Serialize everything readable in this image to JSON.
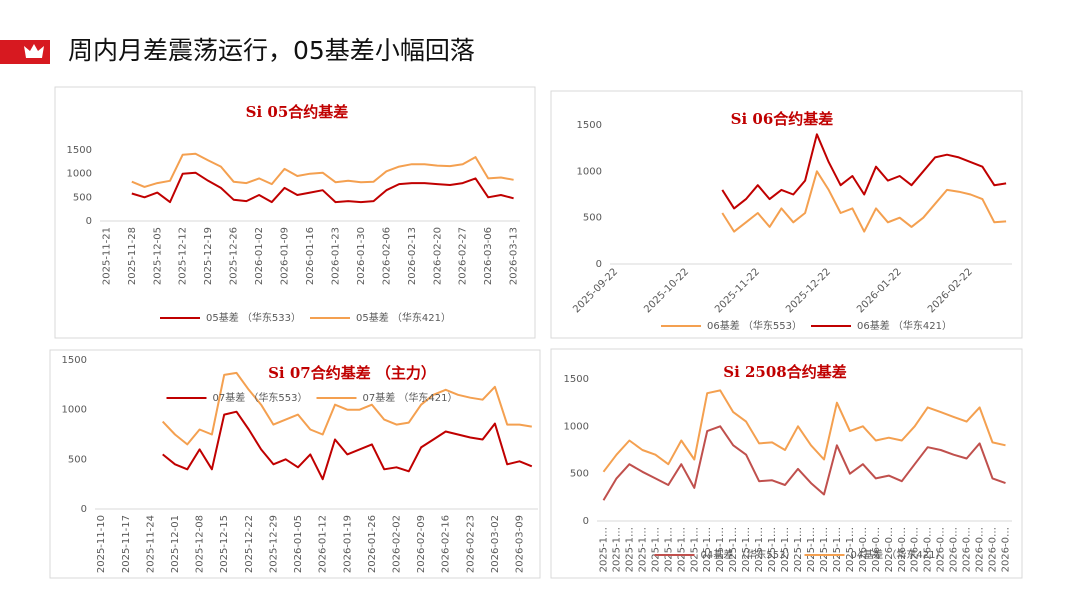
{
  "page_title": "周内月差震荡运行，05基差小幅回落",
  "chart_data": [
    {
      "type": "line",
      "title": "Si 05合约基差",
      "legend": "bottom",
      "categories": [
        "2025-11-21",
        null,
        "2025-11-28",
        null,
        "2025-12-05",
        null,
        "2025-12-12",
        null,
        "2025-12-19",
        null,
        "2025-12-26",
        null,
        "2026-01-02",
        null,
        "2026-01-09",
        null,
        "2026-01-16",
        null,
        "2026-01-23",
        null,
        "2026-01-30",
        null,
        "2026-02-06",
        null,
        "2026-02-13",
        null,
        "2026-02-20",
        null,
        "2026-02-27",
        null,
        "2026-03-06",
        null,
        "2026-03-13"
      ],
      "series": [
        {
          "name": "05基差 （华东533）",
          "color": "#c00000",
          "values": [
            null,
            null,
            580,
            500,
            600,
            400,
            1000,
            1020,
            850,
            700,
            450,
            420,
            550,
            400,
            700,
            550,
            600,
            650,
            400,
            420,
            400,
            420,
            650,
            780,
            800,
            800,
            780,
            760,
            800,
            900,
            500,
            550,
            480
          ]
        },
        {
          "name": "05基差 （华东421）",
          "color": "#f4a050",
          "values": [
            null,
            null,
            830,
            720,
            800,
            850,
            1400,
            1420,
            1280,
            1150,
            830,
            800,
            900,
            780,
            1100,
            950,
            1000,
            1020,
            820,
            850,
            820,
            830,
            1050,
            1150,
            1200,
            1200,
            1170,
            1160,
            1200,
            1350,
            900,
            920,
            870
          ]
        }
      ],
      "ylim": [
        0,
        1500
      ],
      "yticks": [
        0,
        500,
        1000,
        1500
      ]
    },
    {
      "type": "line",
      "title": "Si 06合约基差",
      "legend": "bottom",
      "categories": [
        "2025-09-22",
        null,
        null,
        null,
        null,
        null,
        "2025-10-22",
        null,
        null,
        null,
        null,
        null,
        "2025-11-22",
        null,
        null,
        null,
        null,
        null,
        "2025-12-22",
        null,
        null,
        null,
        null,
        null,
        "2026-01-22",
        null,
        null,
        null,
        null,
        null,
        "2026-02-22",
        null,
        null,
        null
      ],
      "series": [
        {
          "name": "06基差 （华东553）",
          "color": "#f4a050",
          "values": [
            null,
            null,
            null,
            null,
            null,
            null,
            null,
            null,
            null,
            550,
            350,
            450,
            550,
            400,
            600,
            450,
            550,
            1000,
            800,
            550,
            600,
            350,
            600,
            450,
            500,
            400,
            500,
            650,
            800,
            780,
            750,
            700,
            450,
            460
          ]
        },
        {
          "name": "06基差 （华东421）",
          "color": "#c00000",
          "values": [
            null,
            null,
            null,
            null,
            null,
            null,
            null,
            null,
            null,
            800,
            600,
            700,
            850,
            700,
            800,
            750,
            900,
            1400,
            1100,
            850,
            950,
            750,
            1050,
            900,
            950,
            850,
            1000,
            1150,
            1180,
            1150,
            1100,
            1050,
            850,
            870
          ]
        }
      ],
      "ylim": [
        0,
        1500
      ],
      "yticks": [
        0,
        500,
        1000,
        1500
      ]
    },
    {
      "type": "line",
      "title": "Si 07合约基差 （主力）",
      "legend": "top",
      "categories": [
        "2025-11-10",
        null,
        "2025-11-17",
        null,
        "2025-11-24",
        null,
        "2025-12-01",
        null,
        "2025-12-08",
        null,
        "2025-12-15",
        null,
        "2025-12-22",
        null,
        "2025-12-29",
        null,
        "2026-01-05",
        null,
        "2026-01-12",
        null,
        "2026-01-19",
        null,
        "2026-01-26",
        null,
        "2026-02-02",
        null,
        "2026-02-09",
        null,
        "2026-02-16",
        null,
        "2026-02-23",
        null,
        "2026-03-02",
        null,
        "2026-03-09",
        null
      ],
      "series": [
        {
          "name": "07基差 （华东553）",
          "color": "#c00000",
          "values": [
            null,
            null,
            null,
            null,
            null,
            550,
            450,
            400,
            600,
            400,
            950,
            980,
            800,
            600,
            450,
            500,
            420,
            550,
            300,
            700,
            550,
            600,
            650,
            400,
            420,
            380,
            620,
            700,
            780,
            750,
            720,
            700,
            860,
            450,
            480,
            430
          ]
        },
        {
          "name": "07基差 （华东421）",
          "color": "#f4a050",
          "values": [
            null,
            null,
            null,
            null,
            null,
            880,
            750,
            650,
            800,
            750,
            1350,
            1370,
            1200,
            1050,
            850,
            900,
            950,
            800,
            750,
            1050,
            1000,
            1000,
            1050,
            900,
            850,
            870,
            1050,
            1150,
            1200,
            1150,
            1120,
            1100,
            1230,
            850,
            850,
            830
          ]
        }
      ],
      "ylim": [
        0,
        1500
      ],
      "yticks": [
        0,
        500,
        1000,
        1500
      ]
    },
    {
      "type": "line",
      "title": "Si 2508合约基差",
      "legend": "bottom",
      "categories": [
        "2025-1…",
        "2025-1…",
        "2025-1…",
        "2025-1…",
        "2025-1…",
        "2025-1…",
        "2025-1…",
        "2025-1…",
        "2025-1…",
        "2025-1…",
        "2025-1…",
        "2025-1…",
        "2025-1…",
        "2025-1…",
        "2025-1…",
        "2025-1…",
        "2025-1…",
        "2025-1…",
        "2025-1…",
        "2025-1…",
        "2026-0…",
        "2026-0…",
        "2026-0…",
        "2026-0…",
        "2026-0…",
        "2026-0…",
        "2026-0…",
        "2026-0…",
        "2026-0…",
        "2026-0…",
        "2026-0…",
        "2026-0…"
      ],
      "series": [
        {
          "name": "04基差 （华东553）",
          "color": "#c0504d",
          "values": [
            220,
            450,
            600,
            520,
            450,
            380,
            600,
            350,
            950,
            1000,
            800,
            700,
            420,
            430,
            380,
            550,
            400,
            280,
            800,
            500,
            600,
            450,
            480,
            420,
            600,
            780,
            750,
            700,
            660,
            820,
            450,
            400
          ]
        },
        {
          "name": "04基差 （华东421）",
          "color": "#f4a050",
          "values": [
            520,
            700,
            850,
            750,
            700,
            600,
            850,
            650,
            1350,
            1380,
            1150,
            1050,
            820,
            830,
            750,
            1000,
            800,
            650,
            1250,
            950,
            1000,
            850,
            880,
            850,
            1000,
            1200,
            1150,
            1100,
            1050,
            1200,
            830,
            800
          ]
        }
      ],
      "ylim": [
        0,
        1500
      ],
      "yticks": [
        0,
        500,
        1000,
        1500
      ]
    }
  ]
}
